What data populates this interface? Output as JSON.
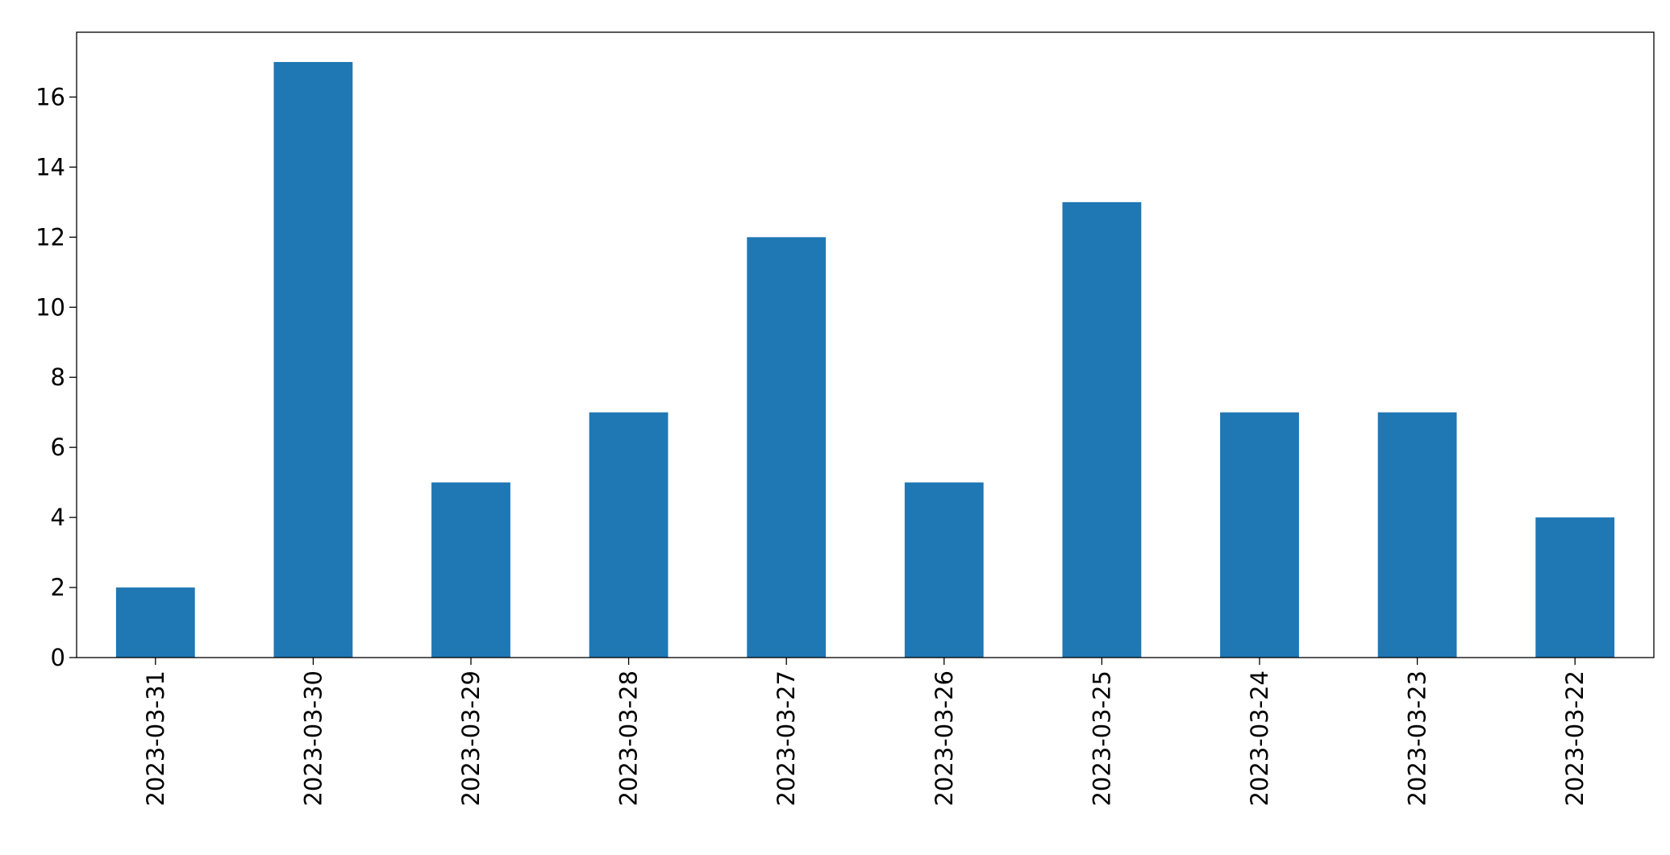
{
  "chart_data": {
    "type": "bar",
    "categories": [
      "2023-03-31",
      "2023-03-30",
      "2023-03-29",
      "2023-03-28",
      "2023-03-27",
      "2023-03-26",
      "2023-03-25",
      "2023-03-24",
      "2023-03-23",
      "2023-03-22"
    ],
    "values": [
      2,
      17,
      5,
      7,
      12,
      5,
      13,
      7,
      7,
      4
    ],
    "color": "#1f77b4",
    "ylim": [
      0,
      17.85
    ],
    "yticks": [
      0,
      2,
      4,
      6,
      8,
      10,
      12,
      14,
      16
    ],
    "grid": false
  }
}
